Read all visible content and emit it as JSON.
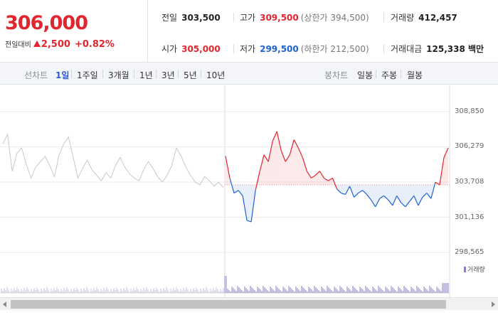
{
  "price": {
    "current": "306,000",
    "change_label": "전일대비",
    "change_abs": "2,500",
    "change_pct": "+0.82%",
    "color_up": "#e0262f",
    "color_down": "#1e62d0",
    "change_icon": "up-triangle-icon"
  },
  "stats": {
    "prev": {
      "label": "전일",
      "value": "303,500"
    },
    "high": {
      "label": "고가",
      "value": "309,500",
      "sub": "(상한가 394,500)"
    },
    "volume": {
      "label": "거래량",
      "value": "412,457"
    },
    "open": {
      "label": "시가",
      "value": "305,000"
    },
    "low": {
      "label": "저가",
      "value": "299,500",
      "sub": "(하한가 212,500)"
    },
    "amount": {
      "label": "거래대금",
      "value": "125,338 백만"
    }
  },
  "tabs": {
    "line_label": "선차트",
    "line_items": [
      "1일",
      "1주일",
      "3개월",
      "1년",
      "3년",
      "5년",
      "10년"
    ],
    "line_active": "1일",
    "candle_label": "봉차트",
    "candle_items": [
      "일봉",
      "주봉",
      "월봉"
    ]
  },
  "chart": {
    "y_ticks": [
      "308,850",
      "306,279",
      "303,708",
      "301,136",
      "298,565"
    ],
    "volume_legend": "거래량",
    "base_price": 303500,
    "y_range": [
      298565,
      308850
    ]
  },
  "chart_data": {
    "type": "line",
    "title": "",
    "xlabel": "",
    "ylabel": "",
    "ylim": [
      298565,
      308850
    ],
    "baseline": 303500,
    "series": [
      {
        "values": [
          306500,
          307200,
          304500,
          305800,
          306200,
          305000,
          304000,
          304800,
          305200,
          305600,
          304900,
          304100,
          305700,
          306500,
          307000,
          305500,
          304000,
          304700,
          305300,
          304600,
          304200,
          303800,
          304400,
          304000,
          304900,
          305500,
          304800,
          304300,
          304000,
          303800,
          304600,
          305200,
          304700,
          304100,
          303700,
          304200,
          304900,
          306200,
          305600,
          304800,
          304200,
          303700,
          303500,
          304100,
          303800,
          303400,
          303700,
          303300
        ]
      },
      {
        "values": [
          305600,
          304000,
          302900,
          303100,
          302700,
          300900,
          300800,
          303100,
          304500,
          305700,
          305200,
          306700,
          307400,
          306000,
          305200,
          305700,
          306800,
          306200,
          305500,
          304500,
          304000,
          304200,
          304500,
          304000,
          303800,
          304000,
          303200,
          302900,
          302800,
          303400,
          302600,
          302900,
          303100,
          302800,
          302400,
          301900,
          302500,
          302700,
          302400,
          302000,
          302700,
          302200,
          301900,
          302300,
          302700,
          302000,
          302600,
          302900,
          302500,
          303700,
          303500,
          305500,
          306200
        ]
      }
    ]
  }
}
